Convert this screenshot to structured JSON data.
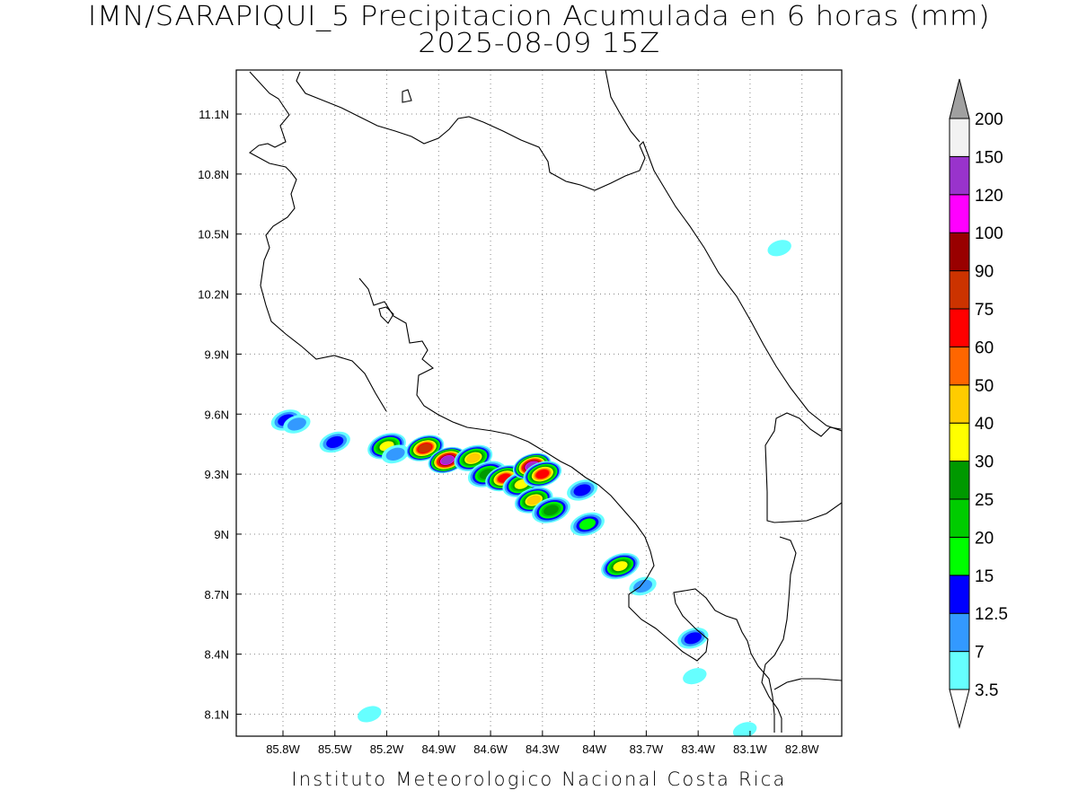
{
  "header": {
    "title_line1": "IMN/SARAPIQUI_5 Precipitacion Acumulada en 6 horas (mm)",
    "title_line2": "2025-08-09 15Z"
  },
  "footer": {
    "credit": "Instituto Meteorologico Nacional Costa Rica"
  },
  "map": {
    "lon_range": [
      -86.07,
      -82.57
    ],
    "lat_range": [
      7.99,
      11.32
    ],
    "lat_ticks": [
      {
        "value": 11.1,
        "label": "11.1N"
      },
      {
        "value": 10.8,
        "label": "10.8N"
      },
      {
        "value": 10.5,
        "label": "10.5N"
      },
      {
        "value": 10.2,
        "label": "10.2N"
      },
      {
        "value": 9.9,
        "label": "9.9N"
      },
      {
        "value": 9.6,
        "label": "9.6N"
      },
      {
        "value": 9.3,
        "label": "9.3N"
      },
      {
        "value": 9.0,
        "label": "9N"
      },
      {
        "value": 8.7,
        "label": "8.7N"
      },
      {
        "value": 8.4,
        "label": "8.4N"
      },
      {
        "value": 8.1,
        "label": "8.1N"
      }
    ],
    "lon_ticks": [
      {
        "value": -85.8,
        "label": "85.8W"
      },
      {
        "value": -85.5,
        "label": "85.5W"
      },
      {
        "value": -85.2,
        "label": "85.2W"
      },
      {
        "value": -84.9,
        "label": "84.9W"
      },
      {
        "value": -84.6,
        "label": "84.6W"
      },
      {
        "value": -84.3,
        "label": "84.3W"
      },
      {
        "value": -84.0,
        "label": "84W"
      },
      {
        "value": -83.7,
        "label": "83.7W"
      },
      {
        "value": -83.4,
        "label": "83.4W"
      },
      {
        "value": -83.1,
        "label": "83.1W"
      },
      {
        "value": -82.8,
        "label": "82.8W"
      }
    ],
    "grid": "dotted",
    "precip_cells": [
      {
        "lon": -85.78,
        "lat": 9.57,
        "mm": 12.5
      },
      {
        "lon": -85.72,
        "lat": 9.55,
        "mm": 7
      },
      {
        "lon": -85.5,
        "lat": 9.46,
        "mm": 12.5
      },
      {
        "lon": -85.2,
        "lat": 9.44,
        "mm": 30
      },
      {
        "lon": -85.15,
        "lat": 9.4,
        "mm": 7
      },
      {
        "lon": -84.98,
        "lat": 9.43,
        "mm": 75
      },
      {
        "lon": -84.85,
        "lat": 9.37,
        "mm": 120
      },
      {
        "lon": -84.7,
        "lat": 9.38,
        "mm": 40
      },
      {
        "lon": -84.62,
        "lat": 9.3,
        "mm": 25
      },
      {
        "lon": -84.52,
        "lat": 9.28,
        "mm": 60
      },
      {
        "lon": -84.42,
        "lat": 9.25,
        "mm": 30
      },
      {
        "lon": -84.36,
        "lat": 9.34,
        "mm": 120
      },
      {
        "lon": -84.3,
        "lat": 9.3,
        "mm": 60
      },
      {
        "lon": -84.35,
        "lat": 9.17,
        "mm": 40
      },
      {
        "lon": -84.25,
        "lat": 9.12,
        "mm": 25
      },
      {
        "lon": -84.07,
        "lat": 9.22,
        "mm": 12.5
      },
      {
        "lon": -84.04,
        "lat": 9.05,
        "mm": 15
      },
      {
        "lon": -83.85,
        "lat": 8.84,
        "mm": 30
      },
      {
        "lon": -83.72,
        "lat": 8.74,
        "mm": 7
      },
      {
        "lon": -83.43,
        "lat": 8.48,
        "mm": 12.5
      },
      {
        "lon": -83.42,
        "lat": 8.29,
        "mm": 3.5
      },
      {
        "lon": -85.3,
        "lat": 8.1,
        "mm": 3.5
      },
      {
        "lon": -83.13,
        "lat": 8.02,
        "mm": 3.5
      },
      {
        "lon": -82.93,
        "lat": 10.43,
        "mm": 3.5
      }
    ]
  },
  "colorbar": {
    "levels": [
      "3.5",
      "7",
      "12.5",
      "15",
      "20",
      "25",
      "30",
      "40",
      "50",
      "60",
      "75",
      "90",
      "100",
      "120",
      "150",
      "200"
    ],
    "colors": [
      "#66ffff",
      "#3399ff",
      "#0000ff",
      "#00ff00",
      "#00cc00",
      "#009900",
      "#ffff00",
      "#ffcc00",
      "#ff6600",
      "#ff0000",
      "#cc3300",
      "#990000",
      "#ff00ff",
      "#9933cc",
      "#f2f2f2"
    ],
    "over_color": "#a0a0a0",
    "under_color": "#ffffff"
  }
}
